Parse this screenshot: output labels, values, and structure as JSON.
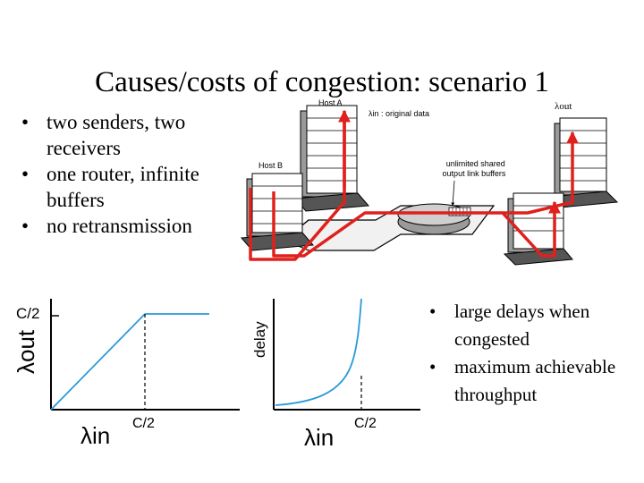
{
  "title": "Causes/costs of congestion: scenario 1",
  "left_bullets": [
    "two senders, two receivers",
    "one router, infinite buffers",
    "no retransmission"
  ],
  "right_bullets": [
    "large delays when congested",
    "maximum achievable throughput"
  ],
  "diagram": {
    "host_a_label": "Host A",
    "host_b_label": "Host B",
    "lambda_in_label": "λin : original data",
    "lambda_out_label": "λout",
    "buffer_label": "unlimited shared output link buffers"
  },
  "graph_throughput": {
    "y_axis_label": "λout",
    "x_axis_label": "λin",
    "y_tick": "C/2",
    "x_tick": "C/2"
  },
  "graph_delay": {
    "y_axis_label": "delay",
    "x_axis_label": "λin",
    "x_tick": "C/2"
  },
  "colors": {
    "flow_path": "#e0201c"
  }
}
